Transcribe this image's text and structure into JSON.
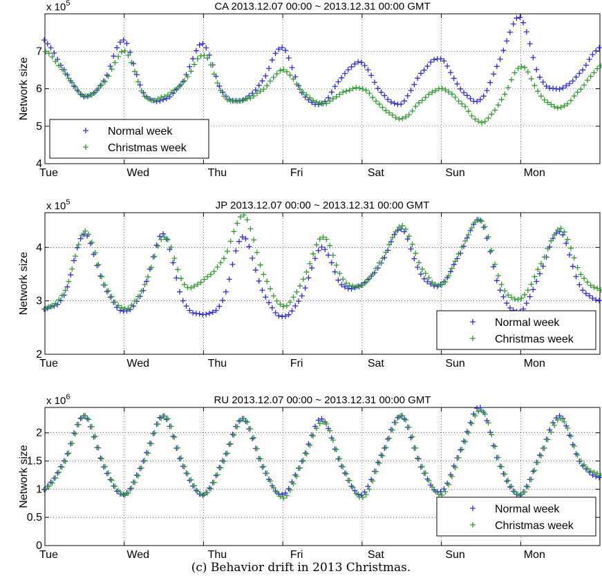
{
  "figure_caption": "(c) Behavior drift in 2013 Christmas.",
  "colors": {
    "normal": "#2b2bd6",
    "christmas": "#2e9a2e"
  },
  "chart_data": [
    {
      "type": "scatter",
      "title": "CA 2013.12.07 00:00 ~ 2013.12.31 00:00 GMT",
      "ylabel": "Network size",
      "multiplier": "x 10",
      "multiplier_exp": "5",
      "ylim": [
        4,
        8
      ],
      "yticks": [
        4,
        5,
        6,
        7
      ],
      "ytick_labels": [
        "4",
        "5",
        "6",
        "7"
      ],
      "xlim": [
        0,
        7
      ],
      "xticks": [
        0,
        1,
        2,
        3,
        4,
        5,
        6
      ],
      "xtick_labels": [
        "Tue",
        "Wed",
        "Thu",
        "Fri",
        "Sat",
        "Sun",
        "Mon"
      ],
      "grid": true,
      "legend_position": "bottom-left",
      "legend_entries": [
        "Normal week",
        "Christmas week"
      ],
      "series": [
        {
          "name": "Normal week",
          "x": [
            0,
            0.25,
            0.5,
            0.75,
            1,
            1.25,
            1.5,
            1.75,
            2,
            2.25,
            2.5,
            2.75,
            3,
            3.25,
            3.5,
            3.75,
            4,
            4.25,
            4.5,
            4.75,
            5,
            5.25,
            5.5,
            5.75,
            6,
            6.25,
            6.5,
            6.75,
            7
          ],
          "y": [
            7.3,
            6.5,
            5.8,
            6.2,
            7.3,
            5.9,
            5.7,
            6.2,
            7.2,
            5.9,
            5.7,
            6.2,
            7.1,
            5.9,
            5.6,
            6.3,
            6.7,
            5.9,
            5.6,
            6.4,
            6.8,
            6.0,
            5.7,
            6.8,
            7.9,
            6.3,
            6.0,
            6.4,
            7.1
          ]
        },
        {
          "name": "Christmas week",
          "x": [
            0,
            0.25,
            0.5,
            0.75,
            1,
            1.25,
            1.5,
            1.75,
            2,
            2.25,
            2.5,
            2.75,
            3,
            3.25,
            3.5,
            3.75,
            4,
            4.25,
            4.5,
            4.75,
            5,
            5.25,
            5.5,
            5.75,
            6,
            6.25,
            6.5,
            6.75,
            7
          ],
          "y": [
            7.0,
            6.4,
            5.8,
            6.2,
            7.0,
            5.8,
            5.8,
            6.2,
            6.9,
            5.8,
            5.7,
            6.0,
            6.5,
            5.9,
            5.6,
            5.9,
            6.0,
            5.5,
            5.2,
            5.7,
            6.0,
            5.6,
            5.1,
            5.7,
            6.6,
            5.8,
            5.5,
            6.0,
            6.6
          ]
        }
      ]
    },
    {
      "type": "scatter",
      "title": "JP 2013.12.07 00:00 ~ 2013.12.31 00:00 GMT",
      "ylabel": "Network size",
      "multiplier": "x 10",
      "multiplier_exp": "5",
      "ylim": [
        2,
        4.65
      ],
      "yticks": [
        2,
        3,
        4
      ],
      "ytick_labels": [
        "2",
        "3",
        "4"
      ],
      "xlim": [
        0,
        7
      ],
      "xticks": [
        0,
        1,
        2,
        3,
        4,
        5,
        6
      ],
      "xtick_labels": [
        "Tue",
        "Wed",
        "Thu",
        "Fri",
        "Sat",
        "Sun",
        "Mon"
      ],
      "grid": true,
      "legend_position": "bottom-right",
      "legend_entries": [
        "Normal week",
        "Christmas week"
      ],
      "series": [
        {
          "name": "Normal week",
          "x": [
            0,
            0.25,
            0.5,
            0.75,
            1,
            1.25,
            1.5,
            1.75,
            2,
            2.25,
            2.5,
            2.75,
            3,
            3.25,
            3.5,
            3.75,
            4,
            4.25,
            4.5,
            4.75,
            5,
            5.25,
            5.5,
            5.75,
            6,
            6.25,
            6.5,
            6.75,
            7
          ],
          "y": [
            2.85,
            3.1,
            4.25,
            3.3,
            2.8,
            3.2,
            4.25,
            3.0,
            2.75,
            3.0,
            4.2,
            3.2,
            2.7,
            3.1,
            4.0,
            3.3,
            3.3,
            3.7,
            4.35,
            3.5,
            3.3,
            3.9,
            4.5,
            3.2,
            2.8,
            3.5,
            4.3,
            3.3,
            3.0
          ]
        },
        {
          "name": "Christmas week",
          "x": [
            0,
            0.25,
            0.5,
            0.75,
            1,
            1.25,
            1.5,
            1.75,
            2,
            2.25,
            2.5,
            2.75,
            3,
            3.25,
            3.5,
            3.75,
            4,
            4.25,
            4.5,
            4.75,
            5,
            5.25,
            5.5,
            5.75,
            6,
            6.25,
            6.5,
            6.75,
            7
          ],
          "y": [
            2.85,
            3.2,
            4.3,
            3.3,
            2.85,
            3.3,
            4.2,
            3.3,
            3.4,
            3.8,
            4.6,
            3.5,
            2.9,
            3.4,
            4.2,
            3.4,
            3.3,
            3.8,
            4.4,
            3.6,
            3.3,
            4.0,
            4.5,
            3.3,
            3.05,
            3.7,
            4.35,
            3.5,
            3.2
          ]
        }
      ]
    },
    {
      "type": "scatter",
      "title": "RU 2013.12.07 00:00 ~ 2013.12.31 00:00 GMT",
      "ylabel": "Network size",
      "multiplier": "x 10",
      "multiplier_exp": "6",
      "ylim": [
        0,
        2.45
      ],
      "yticks": [
        0,
        0.5,
        1,
        1.5,
        2
      ],
      "ytick_labels": [
        "0",
        "0.5",
        "1",
        "1.5",
        "2"
      ],
      "xlim": [
        0,
        7
      ],
      "xticks": [
        0,
        1,
        2,
        3,
        4,
        5,
        6
      ],
      "xtick_labels": [
        "Tue",
        "Wed",
        "Thu",
        "Fri",
        "Sat",
        "Sun",
        "Mon"
      ],
      "grid": true,
      "legend_position": "bottom-right",
      "legend_entries": [
        "Normal week",
        "Christmas week"
      ],
      "series": [
        {
          "name": "Normal week",
          "x": [
            0,
            0.25,
            0.5,
            0.75,
            1,
            1.25,
            1.5,
            1.75,
            2,
            2.25,
            2.5,
            2.75,
            3,
            3.25,
            3.5,
            3.75,
            4,
            4.25,
            4.5,
            4.75,
            5,
            5.25,
            5.5,
            5.75,
            6,
            6.25,
            6.5,
            6.75,
            7
          ],
          "y": [
            1.0,
            1.5,
            2.3,
            1.4,
            0.9,
            1.5,
            2.3,
            1.4,
            0.9,
            1.5,
            2.25,
            1.4,
            0.9,
            1.5,
            2.25,
            1.4,
            0.9,
            1.6,
            2.3,
            1.4,
            0.95,
            1.7,
            2.45,
            1.4,
            0.9,
            1.6,
            2.3,
            1.5,
            1.2
          ]
        },
        {
          "name": "Christmas week",
          "x": [
            0,
            0.25,
            0.5,
            0.75,
            1,
            1.25,
            1.5,
            1.75,
            2,
            2.25,
            2.5,
            2.75,
            3,
            3.25,
            3.5,
            3.75,
            4,
            4.25,
            4.5,
            4.75,
            5,
            5.25,
            5.5,
            5.75,
            6,
            6.25,
            6.5,
            6.75,
            7
          ],
          "y": [
            1.0,
            1.5,
            2.3,
            1.4,
            0.9,
            1.5,
            2.3,
            1.4,
            0.9,
            1.5,
            2.25,
            1.4,
            0.85,
            1.5,
            2.2,
            1.4,
            0.85,
            1.6,
            2.3,
            1.4,
            0.9,
            1.7,
            2.4,
            1.4,
            0.9,
            1.6,
            2.25,
            1.5,
            1.25
          ]
        }
      ]
    }
  ]
}
